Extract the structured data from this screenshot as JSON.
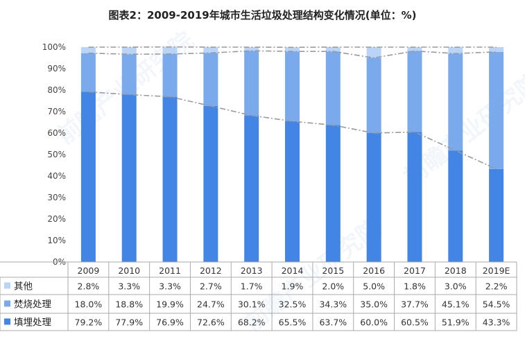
{
  "title": "图表2：2009-2019年城市生活垃圾处理结构变化情况(单位：%)",
  "watermark": "前瞻产业研究院",
  "colors": {
    "landfill": "#4285e4",
    "incineration": "#7aa9ec",
    "other": "#b9d4f6",
    "trend": "#9a9a9a",
    "axis": "#999999"
  },
  "chart_data": {
    "type": "bar",
    "stacked": true,
    "categories": [
      "2009",
      "2010",
      "2011",
      "2012",
      "2013",
      "2014",
      "2015",
      "2016",
      "2017",
      "2018",
      "2019E"
    ],
    "y_ticks": [
      "0%",
      "10%",
      "20%",
      "30%",
      "40%",
      "50%",
      "60%",
      "70%",
      "80%",
      "90%",
      "100%"
    ],
    "ylim": [
      0,
      100
    ],
    "series": [
      {
        "name": "填埋处理",
        "values": [
          79.2,
          77.9,
          76.9,
          72.6,
          68.2,
          65.5,
          63.7,
          60.0,
          60.5,
          51.9,
          43.3
        ]
      },
      {
        "name": "焚烧处理",
        "values": [
          18.0,
          18.8,
          19.9,
          24.7,
          30.1,
          32.5,
          34.3,
          35.0,
          37.7,
          45.1,
          54.5
        ]
      },
      {
        "name": "其他",
        "values": [
          2.8,
          3.3,
          3.3,
          2.7,
          1.7,
          1.9,
          2.0,
          5.0,
          1.8,
          3.0,
          2.2
        ]
      }
    ],
    "table": {
      "rows": [
        {
          "name": "其他",
          "values": [
            "2.8%",
            "3.3%",
            "3.3%",
            "2.7%",
            "1.7%",
            "1.9%",
            "2.0%",
            "5.0%",
            "1.8%",
            "3.0%",
            "2.2%"
          ]
        },
        {
          "name": "焚烧处理",
          "values": [
            "18.0%",
            "18.8%",
            "19.9%",
            "24.7%",
            "30.1%",
            "32.5%",
            "34.3%",
            "35.0%",
            "37.7%",
            "45.1%",
            "54.5%"
          ]
        },
        {
          "name": "填埋处理",
          "values": [
            "79.2%",
            "77.9%",
            "76.9%",
            "72.6%",
            "68.2%",
            "65.5%",
            "63.7%",
            "60.0%",
            "60.5%",
            "51.9%",
            "43.3%"
          ]
        }
      ]
    },
    "trend_lines": "dash-dot lines connecting stack tops",
    "legend": "table-left"
  }
}
